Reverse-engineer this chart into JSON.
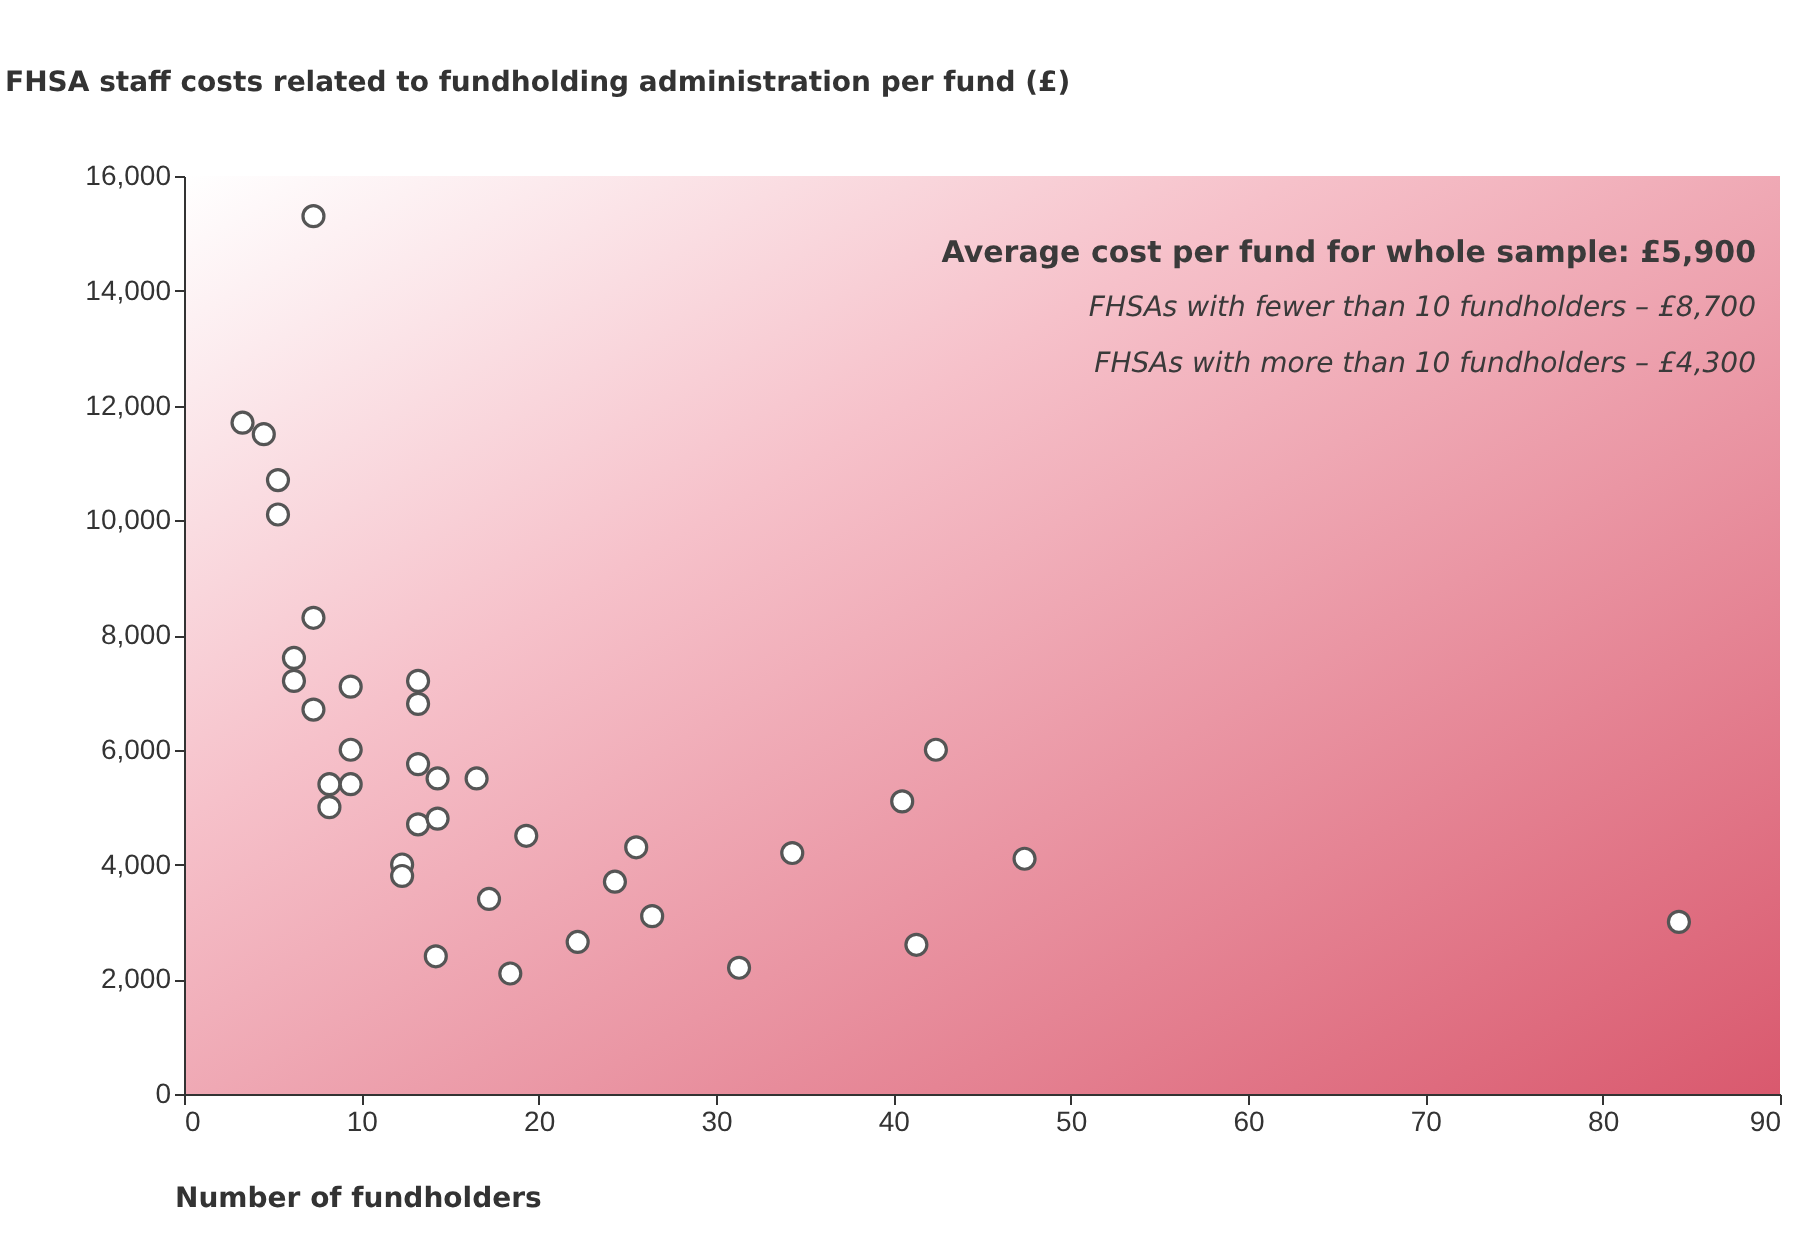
{
  "chart_data": {
    "type": "scatter",
    "ylabel": "FHSA staff costs related to fundholding administration per fund (£)",
    "xlabel": "Number of fundholders",
    "annotations": [
      "Average cost per fund for whole sample: £5,900",
      "FHSAs  with fewer than 10 fundholders – £8,700",
      "FHSAs with more than 10 fundholders – £4,300"
    ],
    "xlim": [
      0,
      90
    ],
    "xticks": [
      0,
      10,
      20,
      30,
      40,
      50,
      60,
      70,
      80,
      90
    ],
    "ylim": [
      0,
      16000
    ],
    "yticks": [
      0,
      {
        "value": 2000,
        "label": "2,000"
      },
      {
        "value": 4000,
        "label": "4,000"
      },
      {
        "value": 6000,
        "label": "6,000"
      },
      {
        "value": 8000,
        "label": "8,000"
      },
      {
        "value": 10000,
        "label": "10,000"
      },
      {
        "value": 12000,
        "label": "12,000"
      },
      {
        "value": 14000,
        "label": "14,000"
      },
      {
        "value": 16000,
        "label": "16,000"
      }
    ],
    "grid": false,
    "legend": false,
    "marker": "circle",
    "series": [
      {
        "color": "#ffffff",
        "x": [
          7.3,
          3.3,
          4.5,
          5.3,
          5.3,
          7.3,
          6.2,
          6.2,
          7.3,
          9.4,
          13.2,
          13.2,
          9.4,
          8.2,
          9.4,
          8.2,
          13.2,
          14.3,
          16.5,
          13.2,
          14.3,
          19.3,
          12.3,
          12.3,
          17.2,
          14.2,
          18.4,
          22.2,
          24.3,
          25.5,
          26.4,
          31.3,
          34.3,
          40.5,
          42.4,
          41.3,
          47.4,
          84.3
        ],
        "values": [
          15300,
          11700,
          11500,
          10700,
          10100,
          8300,
          7600,
          7200,
          6700,
          7100,
          7200,
          6800,
          6000,
          5400,
          5400,
          5000,
          5750,
          5500,
          5500,
          4700,
          4800,
          4500,
          4000,
          3800,
          3400,
          2400,
          2100,
          2650,
          3700,
          4300,
          3100,
          2200,
          4200,
          5100,
          6000,
          2600,
          4100,
          3000
        ]
      }
    ]
  }
}
